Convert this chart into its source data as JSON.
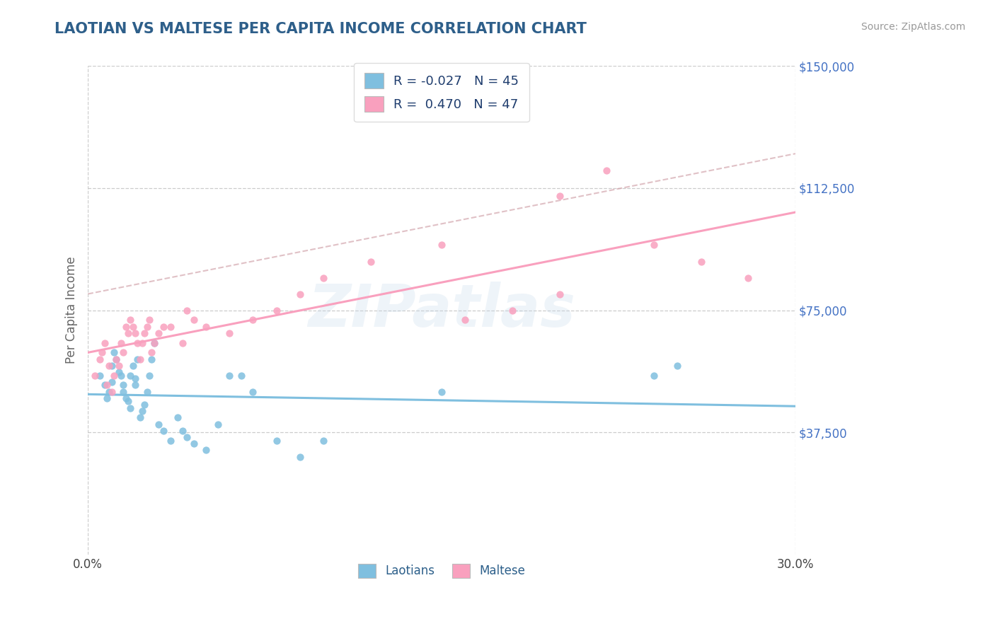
{
  "title": "LAOTIAN VS MALTESE PER CAPITA INCOME CORRELATION CHART",
  "source_text": "Source: ZipAtlas.com",
  "ylabel": "Per Capita Income",
  "xlim": [
    0.0,
    0.3
  ],
  "ylim": [
    0,
    150000
  ],
  "yticks": [
    37500,
    75000,
    112500,
    150000
  ],
  "ytick_labels": [
    "$37,500",
    "$75,000",
    "$112,500",
    "$150,000"
  ],
  "xtick_positions": [
    0.0,
    0.3
  ],
  "xtick_labels": [
    "0.0%",
    "30.0%"
  ],
  "blue_color": "#7fbfdf",
  "pink_color": "#f9a0be",
  "blue_label": "Laotians",
  "pink_label": "Maltese",
  "blue_R": -0.027,
  "blue_N": 45,
  "pink_R": 0.47,
  "pink_N": 47,
  "watermark": "ZIPatlas",
  "background_color": "#ffffff",
  "grid_color": "#cccccc",
  "title_color": "#2e5f8a",
  "ytick_color": "#4472c4",
  "source_color": "#999999",
  "legend_text_color": "#1f3d6e",
  "bottom_label_color": "#2c5f8a",
  "blue_x": [
    0.005,
    0.007,
    0.008,
    0.009,
    0.01,
    0.01,
    0.011,
    0.012,
    0.013,
    0.014,
    0.015,
    0.015,
    0.016,
    0.017,
    0.018,
    0.018,
    0.019,
    0.02,
    0.02,
    0.021,
    0.022,
    0.023,
    0.024,
    0.025,
    0.026,
    0.027,
    0.028,
    0.03,
    0.032,
    0.035,
    0.038,
    0.04,
    0.042,
    0.045,
    0.05,
    0.055,
    0.06,
    0.065,
    0.07,
    0.08,
    0.09,
    0.1,
    0.15,
    0.24,
    0.25
  ],
  "blue_y": [
    55000,
    52000,
    48000,
    50000,
    53000,
    58000,
    62000,
    60000,
    56000,
    55000,
    52000,
    50000,
    48000,
    47000,
    45000,
    55000,
    58000,
    54000,
    52000,
    60000,
    42000,
    44000,
    46000,
    50000,
    55000,
    60000,
    65000,
    40000,
    38000,
    35000,
    42000,
    38000,
    36000,
    34000,
    32000,
    40000,
    55000,
    55000,
    50000,
    35000,
    30000,
    35000,
    50000,
    55000,
    58000
  ],
  "pink_x": [
    0.003,
    0.005,
    0.006,
    0.007,
    0.008,
    0.009,
    0.01,
    0.011,
    0.012,
    0.013,
    0.014,
    0.015,
    0.016,
    0.017,
    0.018,
    0.019,
    0.02,
    0.021,
    0.022,
    0.023,
    0.024,
    0.025,
    0.026,
    0.027,
    0.028,
    0.03,
    0.032,
    0.035,
    0.04,
    0.042,
    0.045,
    0.05,
    0.06,
    0.07,
    0.08,
    0.09,
    0.1,
    0.12,
    0.15,
    0.2,
    0.22,
    0.24,
    0.26,
    0.28,
    0.2,
    0.18,
    0.16
  ],
  "pink_y": [
    55000,
    60000,
    62000,
    65000,
    52000,
    58000,
    50000,
    55000,
    60000,
    58000,
    65000,
    62000,
    70000,
    68000,
    72000,
    70000,
    68000,
    65000,
    60000,
    65000,
    68000,
    70000,
    72000,
    62000,
    65000,
    68000,
    70000,
    70000,
    65000,
    75000,
    72000,
    70000,
    68000,
    72000,
    75000,
    80000,
    85000,
    90000,
    95000,
    110000,
    118000,
    95000,
    90000,
    85000,
    80000,
    75000,
    72000
  ]
}
